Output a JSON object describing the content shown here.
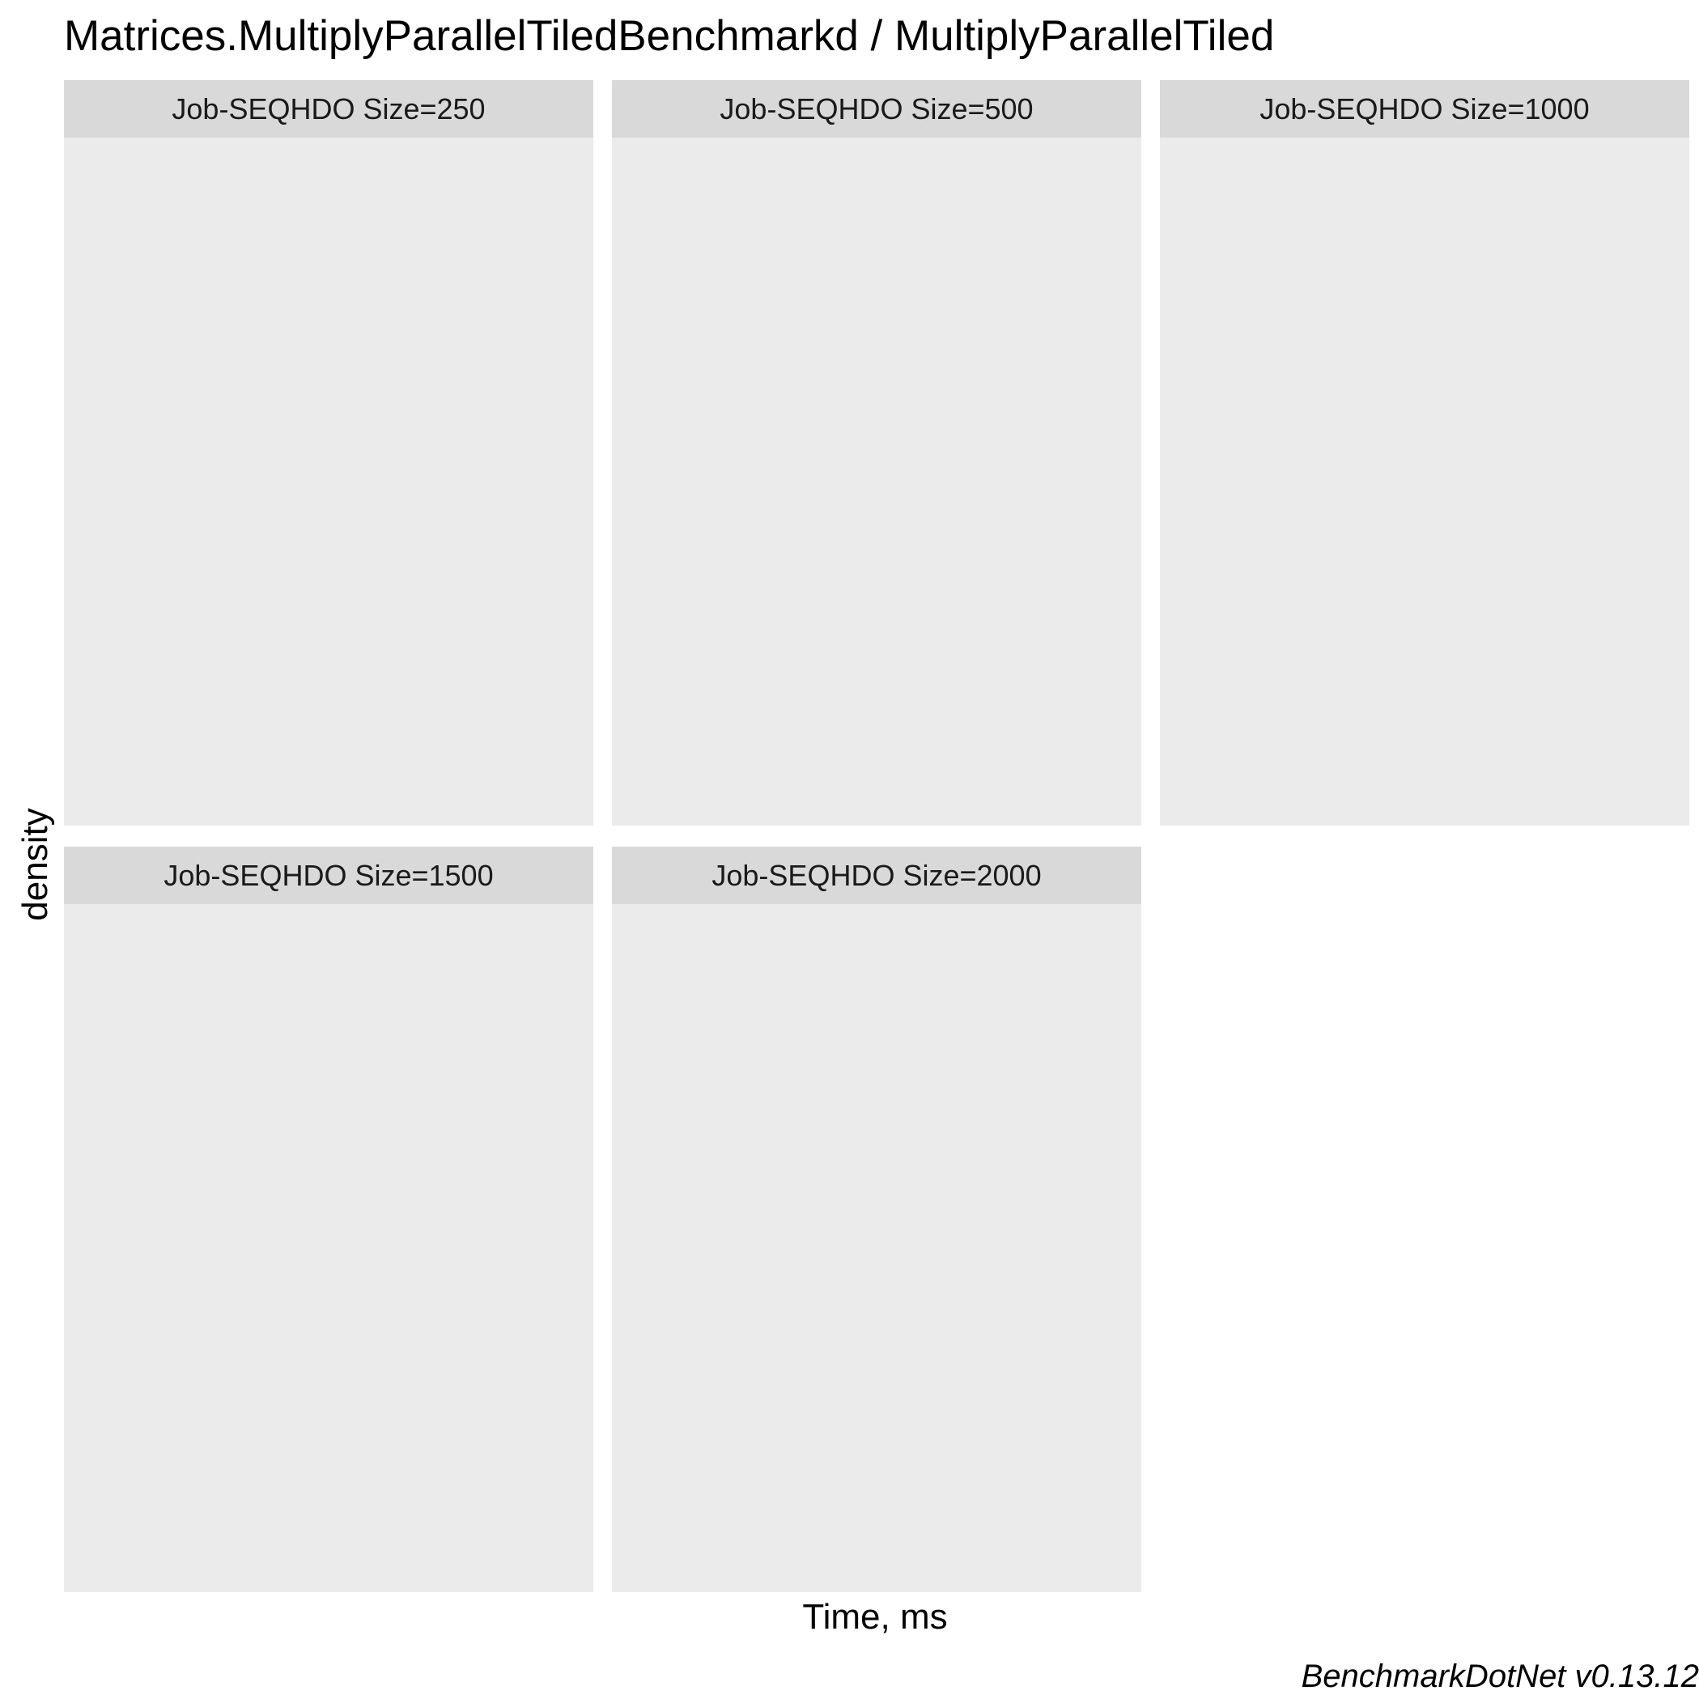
{
  "chart_data": {
    "type": "area",
    "title": "Matrices.MultiplyParallelTiledBenchmarkd / MultiplyParallelTiled",
    "xlabel": "Time, ms",
    "ylabel": "density",
    "caption": "BenchmarkDotNet v0.13.12",
    "grid": false,
    "facets": [
      {
        "label": "Job-SEQHDO Size=250",
        "series": []
      },
      {
        "label": "Job-SEQHDO Size=500",
        "series": []
      },
      {
        "label": "Job-SEQHDO Size=1000",
        "series": []
      },
      {
        "label": "Job-SEQHDO Size=1500",
        "series": []
      },
      {
        "label": "Job-SEQHDO Size=2000",
        "series": []
      }
    ],
    "colors": {
      "panel_background": "#ebebeb",
      "strip_background": "#d9d9d9"
    }
  }
}
